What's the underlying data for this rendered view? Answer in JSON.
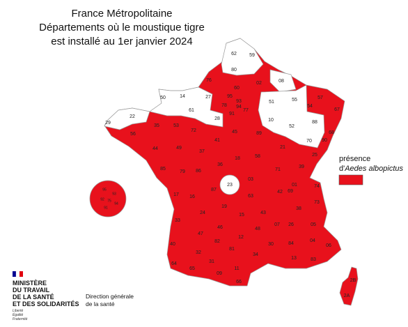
{
  "header": {
    "title_lines": [
      "France Métropolitaine",
      "Départements où le moustique tigre",
      "est installé au 1er janvier 2024"
    ]
  },
  "legend": {
    "line1": "présence",
    "line2_prefix": "d'",
    "line2_species": "Aedes albopictus",
    "color": "#e8111c"
  },
  "map": {
    "absent_color": "#ffffff",
    "departments": [
      {
        "code": "62",
        "present": false
      },
      {
        "code": "59",
        "present": false
      },
      {
        "code": "80",
        "present": false
      },
      {
        "code": "08",
        "present": false
      },
      {
        "code": "50",
        "present": false
      },
      {
        "code": "14",
        "present": false
      },
      {
        "code": "27",
        "present": false
      },
      {
        "code": "61",
        "present": false
      },
      {
        "code": "22",
        "present": false
      },
      {
        "code": "29",
        "present": false
      },
      {
        "code": "28",
        "present": false
      },
      {
        "code": "51",
        "present": false
      },
      {
        "code": "55",
        "present": false
      },
      {
        "code": "10",
        "present": false
      },
      {
        "code": "52",
        "present": false
      },
      {
        "code": "88",
        "present": false
      },
      {
        "code": "70",
        "present": false
      },
      {
        "code": "23",
        "present": false
      },
      {
        "code": "76",
        "present": true
      },
      {
        "code": "60",
        "present": true
      },
      {
        "code": "02",
        "present": true
      },
      {
        "code": "95",
        "present": true
      },
      {
        "code": "78",
        "present": true
      },
      {
        "code": "93",
        "present": true
      },
      {
        "code": "94",
        "present": true
      },
      {
        "code": "91",
        "present": true
      },
      {
        "code": "77",
        "present": true
      },
      {
        "code": "57",
        "present": true
      },
      {
        "code": "54",
        "present": true
      },
      {
        "code": "67",
        "present": true
      },
      {
        "code": "68",
        "present": true
      },
      {
        "code": "90",
        "present": true
      },
      {
        "code": "56",
        "present": true
      },
      {
        "code": "35",
        "present": true
      },
      {
        "code": "53",
        "present": true
      },
      {
        "code": "72",
        "present": true
      },
      {
        "code": "45",
        "present": true
      },
      {
        "code": "89",
        "present": true
      },
      {
        "code": "44",
        "present": true
      },
      {
        "code": "49",
        "present": true
      },
      {
        "code": "37",
        "present": true
      },
      {
        "code": "41",
        "present": true
      },
      {
        "code": "21",
        "present": true
      },
      {
        "code": "25",
        "present": true
      },
      {
        "code": "85",
        "present": true
      },
      {
        "code": "79",
        "present": true
      },
      {
        "code": "86",
        "present": true
      },
      {
        "code": "36",
        "present": true
      },
      {
        "code": "18",
        "present": true
      },
      {
        "code": "58",
        "present": true
      },
      {
        "code": "71",
        "present": true
      },
      {
        "code": "39",
        "present": true
      },
      {
        "code": "03",
        "present": true
      },
      {
        "code": "01",
        "present": true
      },
      {
        "code": "74",
        "present": true
      },
      {
        "code": "17",
        "present": true
      },
      {
        "code": "16",
        "present": true
      },
      {
        "code": "87",
        "present": true
      },
      {
        "code": "42",
        "present": true
      },
      {
        "code": "69",
        "present": true
      },
      {
        "code": "73",
        "present": true
      },
      {
        "code": "63",
        "present": true
      },
      {
        "code": "24",
        "present": true
      },
      {
        "code": "19",
        "present": true
      },
      {
        "code": "15",
        "present": true
      },
      {
        "code": "43",
        "present": true
      },
      {
        "code": "38",
        "present": true
      },
      {
        "code": "33",
        "present": true
      },
      {
        "code": "46",
        "present": true
      },
      {
        "code": "07",
        "present": true
      },
      {
        "code": "26",
        "present": true
      },
      {
        "code": "05",
        "present": true
      },
      {
        "code": "47",
        "present": true
      },
      {
        "code": "12",
        "present": true
      },
      {
        "code": "48",
        "present": true
      },
      {
        "code": "40",
        "present": true
      },
      {
        "code": "82",
        "present": true
      },
      {
        "code": "30",
        "present": true
      },
      {
        "code": "84",
        "present": true
      },
      {
        "code": "04",
        "present": true
      },
      {
        "code": "06",
        "present": true
      },
      {
        "code": "32",
        "present": true
      },
      {
        "code": "81",
        "present": true
      },
      {
        "code": "34",
        "present": true
      },
      {
        "code": "13",
        "present": true
      },
      {
        "code": "83",
        "present": true
      },
      {
        "code": "64",
        "present": true
      },
      {
        "code": "65",
        "present": true
      },
      {
        "code": "31",
        "present": true
      },
      {
        "code": "11",
        "present": true
      },
      {
        "code": "09",
        "present": true
      },
      {
        "code": "66",
        "present": true
      },
      {
        "code": "2B",
        "present": true
      },
      {
        "code": "2A",
        "present": true
      }
    ],
    "inset_labels": [
      "95",
      "93",
      "92",
      "75",
      "94",
      "91"
    ]
  },
  "footer": {
    "ministry_lines": [
      "MINISTÈRE",
      "DU TRAVAIL",
      "DE LA SANTÉ",
      "ET DES SOLIDARITÉS"
    ],
    "motto_lines": [
      "Liberté",
      "Égalité",
      "Fraternité"
    ],
    "direction_lines": [
      "Direction générale",
      "de la santé"
    ]
  }
}
